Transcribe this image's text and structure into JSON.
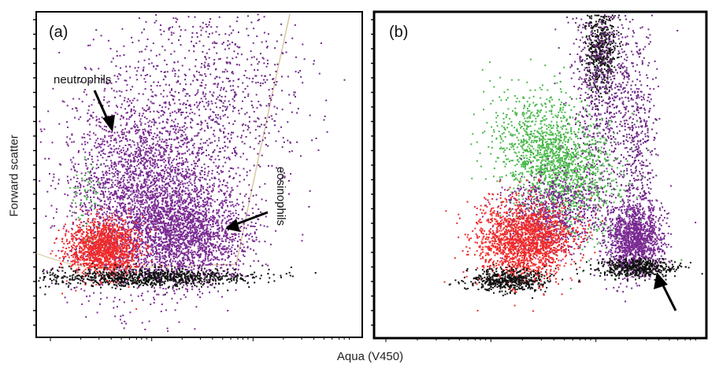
{
  "figure": {
    "ylabel": "Forward scatter",
    "xlabel": "Aqua (V450)"
  },
  "chart_data": [
    {
      "type": "scatter",
      "panel_label": "(a)",
      "xlabel": "Aqua (V450)",
      "ylabel": "Forward scatter",
      "x_scale": "log",
      "grid": false,
      "annotations": [
        "neutrophils",
        "eosinophils"
      ],
      "series": [
        {
          "color": "#7a2a92",
          "region": "large upper-center cloud (neutrophils) and right lower cluster (eosinophils)"
        },
        {
          "color": "#ef2b2b",
          "region": "lower-left dense cluster"
        },
        {
          "color": "#4caf50",
          "region": "sparse points at left edge"
        },
        {
          "color": "#111111",
          "region": "band along bottom of populations"
        }
      ]
    },
    {
      "type": "scatter",
      "panel_label": "(b)",
      "xlabel": "Aqua (V450)",
      "ylabel": "Forward scatter",
      "x_scale": "log",
      "grid": false,
      "annotations": [],
      "series": [
        {
          "color": "#7a2a92",
          "region": "right compact cluster with vertical streak"
        },
        {
          "color": "#ef2b2b",
          "region": "left lower dense cluster"
        },
        {
          "color": "#49b84a",
          "region": "middle upper diagonal cloud"
        },
        {
          "color": "#111111",
          "region": "vertical streak at top and band at bottom"
        }
      ]
    }
  ]
}
